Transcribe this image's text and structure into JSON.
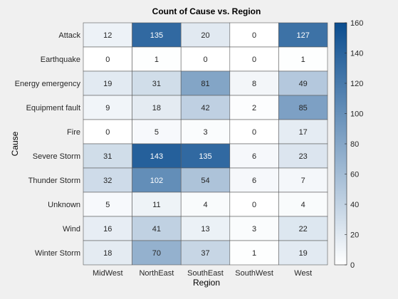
{
  "chart_data": {
    "type": "heatmap",
    "title": "Count of Cause vs. Region",
    "xlabel": "Region",
    "ylabel": "Cause",
    "x_categories": [
      "MidWest",
      "NorthEast",
      "SouthEast",
      "SouthWest",
      "West"
    ],
    "y_categories": [
      "Attack",
      "Earthquake",
      "Energy emergency",
      "Equipment fault",
      "Fire",
      "Severe Storm",
      "Thunder Storm",
      "Unknown",
      "Wind",
      "Winter Storm"
    ],
    "values": [
      [
        12,
        135,
        20,
        0,
        127
      ],
      [
        0,
        1,
        0,
        0,
        1
      ],
      [
        19,
        31,
        81,
        8,
        49
      ],
      [
        9,
        18,
        42,
        2,
        85
      ],
      [
        0,
        5,
        3,
        0,
        17
      ],
      [
        31,
        143,
        135,
        6,
        23
      ],
      [
        32,
        102,
        54,
        6,
        7
      ],
      [
        5,
        11,
        4,
        0,
        4
      ],
      [
        16,
        41,
        13,
        3,
        22
      ],
      [
        18,
        70,
        37,
        1,
        19
      ]
    ],
    "colorbar": {
      "range": [
        0,
        160
      ],
      "ticks": [
        0,
        20,
        40,
        60,
        80,
        100,
        120,
        140,
        160
      ],
      "colors": {
        "low": "#ffffff",
        "high": "#0b4d8f"
      }
    }
  }
}
